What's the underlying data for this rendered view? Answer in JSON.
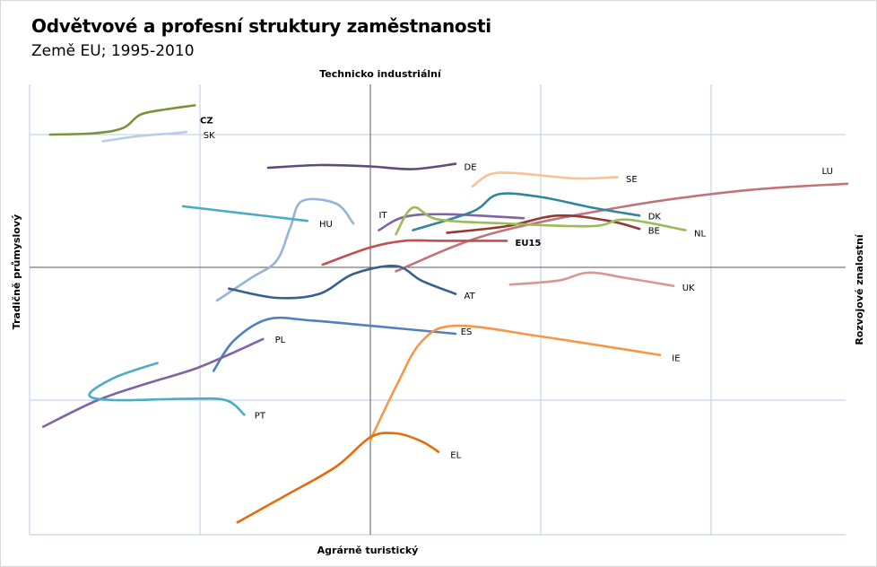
{
  "title": "Odvětvové a profesní struktury zaměstnanosti",
  "subtitle": "Země EU; 1995-2010",
  "chart_data": {
    "type": "line",
    "title": "Odvětvové a profesní struktury zaměstnanosti",
    "subtitle": "Země EU; 1995-2010",
    "axis_labels": {
      "top": "Technicko industriální",
      "bottom": "Agrárně turistický",
      "left": "Tradičně průmyslový",
      "right": "Rozvojové znalostní"
    },
    "xlim": [
      -2,
      2.8
    ],
    "ylim": [
      -2,
      1.4
    ],
    "grid": true,
    "legend": "none",
    "series": [
      {
        "name": "CZ",
        "color": "#77933c",
        "bold": true,
        "points": [
          [
            -1.88,
            1.0
          ],
          [
            -1.62,
            1.01
          ],
          [
            -1.45,
            1.05
          ],
          [
            -1.35,
            1.15
          ],
          [
            -1.2,
            1.19
          ],
          [
            -1.03,
            1.22
          ]
        ]
      },
      {
        "name": "SK",
        "color": "#b9cde5",
        "points": [
          [
            -1.57,
            0.95
          ],
          [
            -1.35,
            0.99
          ],
          [
            -1.15,
            1.01
          ],
          [
            -1.08,
            1.02
          ]
        ]
      },
      {
        "name": "DE",
        "color": "#604a7b",
        "points": [
          [
            -0.6,
            0.75
          ],
          [
            -0.3,
            0.77
          ],
          [
            0.0,
            0.76
          ],
          [
            0.25,
            0.74
          ],
          [
            0.5,
            0.78
          ]
        ]
      },
      {
        "name": "SE",
        "color": "#fac090",
        "points": [
          [
            0.6,
            0.61
          ],
          [
            0.7,
            0.7
          ],
          [
            0.85,
            0.71
          ],
          [
            1.2,
            0.67
          ],
          [
            1.45,
            0.68
          ]
        ]
      },
      {
        "name": "LU",
        "color": "#c0747a",
        "points": [
          [
            0.15,
            -0.03
          ],
          [
            0.7,
            0.25
          ],
          [
            1.5,
            0.46
          ],
          [
            2.2,
            0.58
          ],
          [
            2.8,
            0.63
          ]
        ]
      },
      {
        "name": "IT",
        "color": "#8064a2",
        "points": [
          [
            0.05,
            0.28
          ],
          [
            0.2,
            0.38
          ],
          [
            0.45,
            0.4
          ],
          [
            0.9,
            0.37
          ]
        ]
      },
      {
        "name": "HU",
        "color": "#95b3d7",
        "points": [
          [
            -0.9,
            -0.25
          ],
          [
            -0.7,
            -0.08
          ],
          [
            -0.55,
            0.05
          ],
          [
            -0.47,
            0.3
          ],
          [
            -0.4,
            0.5
          ],
          [
            -0.2,
            0.48
          ],
          [
            -0.1,
            0.33
          ]
        ]
      },
      {
        "name": "HU-line",
        "color": "#4bacc6",
        "points": [
          [
            -1.1,
            0.46
          ],
          [
            -0.7,
            0.4
          ],
          [
            -0.37,
            0.35
          ]
        ]
      },
      {
        "name": "DK",
        "color": "#31859c",
        "points": [
          [
            0.25,
            0.28
          ],
          [
            0.6,
            0.42
          ],
          [
            0.75,
            0.55
          ],
          [
            1.0,
            0.53
          ],
          [
            1.3,
            0.45
          ],
          [
            1.58,
            0.39
          ]
        ]
      },
      {
        "name": "BE",
        "color": "#953735",
        "points": [
          [
            0.45,
            0.26
          ],
          [
            0.8,
            0.31
          ],
          [
            1.1,
            0.39
          ],
          [
            1.4,
            0.35
          ],
          [
            1.58,
            0.29
          ]
        ]
      },
      {
        "name": "NL",
        "color": "#9bbb59",
        "points": [
          [
            0.15,
            0.25
          ],
          [
            0.25,
            0.45
          ],
          [
            0.4,
            0.36
          ],
          [
            0.8,
            0.33
          ],
          [
            1.3,
            0.31
          ],
          [
            1.5,
            0.36
          ],
          [
            1.85,
            0.28
          ]
        ]
      },
      {
        "name": "EU15",
        "color": "#c0504d",
        "bold": true,
        "points": [
          [
            -0.28,
            0.02
          ],
          [
            0.0,
            0.15
          ],
          [
            0.2,
            0.2
          ],
          [
            0.4,
            0.2
          ],
          [
            0.8,
            0.2
          ]
        ]
      },
      {
        "name": "AT",
        "color": "#376092",
        "points": [
          [
            -0.83,
            -0.16
          ],
          [
            -0.55,
            -0.23
          ],
          [
            -0.3,
            -0.2
          ],
          [
            -0.1,
            -0.05
          ],
          [
            0.15,
            0.01
          ],
          [
            0.3,
            -0.1
          ],
          [
            0.5,
            -0.2
          ]
        ]
      },
      {
        "name": "UK",
        "color": "#d99694",
        "points": [
          [
            0.82,
            -0.13
          ],
          [
            1.1,
            -0.1
          ],
          [
            1.28,
            -0.04
          ],
          [
            1.5,
            -0.08
          ],
          [
            1.78,
            -0.14
          ]
        ]
      },
      {
        "name": "ES",
        "color": "#4f81bd",
        "points": [
          [
            -0.92,
            -0.78
          ],
          [
            -0.8,
            -0.55
          ],
          [
            -0.6,
            -0.39
          ],
          [
            -0.35,
            -0.4
          ],
          [
            0.0,
            -0.44
          ],
          [
            0.5,
            -0.5
          ]
        ]
      },
      {
        "name": "IE",
        "color": "#f79646",
        "points": [
          [
            0.0,
            -1.3
          ],
          [
            0.15,
            -0.9
          ],
          [
            0.3,
            -0.56
          ],
          [
            0.5,
            -0.44
          ],
          [
            1.0,
            -0.52
          ],
          [
            1.7,
            -0.66
          ]
        ]
      },
      {
        "name": "PL",
        "color": "#8064a2",
        "points": [
          [
            -1.92,
            -1.2
          ],
          [
            -1.6,
            -1.0
          ],
          [
            -1.3,
            -0.87
          ],
          [
            -1.0,
            -0.75
          ],
          [
            -0.63,
            -0.54
          ]
        ]
      },
      {
        "name": "PT",
        "color": "#4bacc6",
        "points": [
          [
            -1.25,
            -0.72
          ],
          [
            -1.5,
            -0.83
          ],
          [
            -1.65,
            -0.96
          ],
          [
            -1.5,
            -1.0
          ],
          [
            -1.1,
            -0.99
          ],
          [
            -0.85,
            -1.0
          ],
          [
            -0.74,
            -1.11
          ]
        ]
      },
      {
        "name": "EL",
        "color": "#e46c0a",
        "points": [
          [
            -0.78,
            -1.92
          ],
          [
            -0.5,
            -1.72
          ],
          [
            -0.2,
            -1.5
          ],
          [
            0.0,
            -1.28
          ],
          [
            0.15,
            -1.25
          ],
          [
            0.3,
            -1.31
          ],
          [
            0.4,
            -1.39
          ]
        ]
      }
    ],
    "labels": [
      {
        "text": "CZ",
        "x": -1.0,
        "y": 1.11,
        "bold": true
      },
      {
        "text": "SK",
        "x": -0.98,
        "y": 1.0
      },
      {
        "text": "DE",
        "x": 0.55,
        "y": 0.76
      },
      {
        "text": "SE",
        "x": 1.5,
        "y": 0.67
      },
      {
        "text": "LU",
        "x": 2.65,
        "y": 0.73
      },
      {
        "text": "IT",
        "x": 0.05,
        "y": 0.4
      },
      {
        "text": "HU",
        "x": -0.3,
        "y": 0.33
      },
      {
        "text": "DK",
        "x": 1.63,
        "y": 0.39
      },
      {
        "text": "BE",
        "x": 1.63,
        "y": 0.28
      },
      {
        "text": "NL",
        "x": 1.9,
        "y": 0.26
      },
      {
        "text": "EU15",
        "x": 0.85,
        "y": 0.19,
        "bold": true
      },
      {
        "text": "AT",
        "x": 0.55,
        "y": -0.21
      },
      {
        "text": "UK",
        "x": 1.83,
        "y": -0.15
      },
      {
        "text": "ES",
        "x": 0.53,
        "y": -0.48
      },
      {
        "text": "IE",
        "x": 1.77,
        "y": -0.68
      },
      {
        "text": "PL",
        "x": -0.56,
        "y": -0.54
      },
      {
        "text": "PT",
        "x": -0.68,
        "y": -1.11
      },
      {
        "text": "EL",
        "x": 0.47,
        "y": -1.41
      }
    ]
  }
}
